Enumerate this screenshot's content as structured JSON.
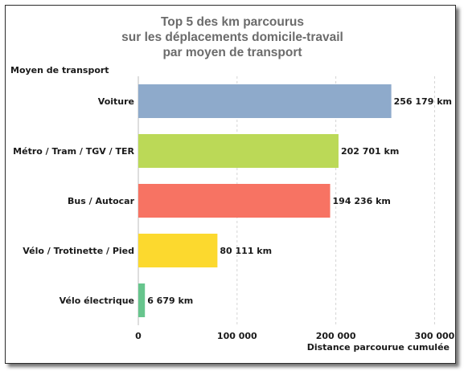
{
  "chart_data": {
    "type": "bar",
    "orientation": "horizontal",
    "title": [
      "Top 5 des km parcourus",
      "sur les déplacements domicile-travail",
      "par moyen de transport"
    ],
    "ylabel": "Moyen de transport",
    "xlabel": "Distance parcourue cumulée",
    "categories": [
      "Voiture",
      "Métro / Tram / TGV / TER",
      "Bus / Autocar",
      "Vélo / Trotinette / Pied",
      "Vélo électrique"
    ],
    "values": [
      256179,
      202701,
      194236,
      80111,
      6679
    ],
    "value_labels": [
      "256 179 km",
      "202 701 km",
      "194 236 km",
      "80 111 km",
      "6 679 km"
    ],
    "colors": [
      "#8eaacb",
      "#bbd957",
      "#f77363",
      "#fcd92e",
      "#67c58d"
    ],
    "xlim": [
      0,
      320000
    ],
    "xticks": [
      0,
      100000,
      200000,
      300000
    ],
    "xtick_labels": [
      "0",
      "100 000",
      "200 000",
      "300 000"
    ],
    "grid": "vertical dashed"
  }
}
